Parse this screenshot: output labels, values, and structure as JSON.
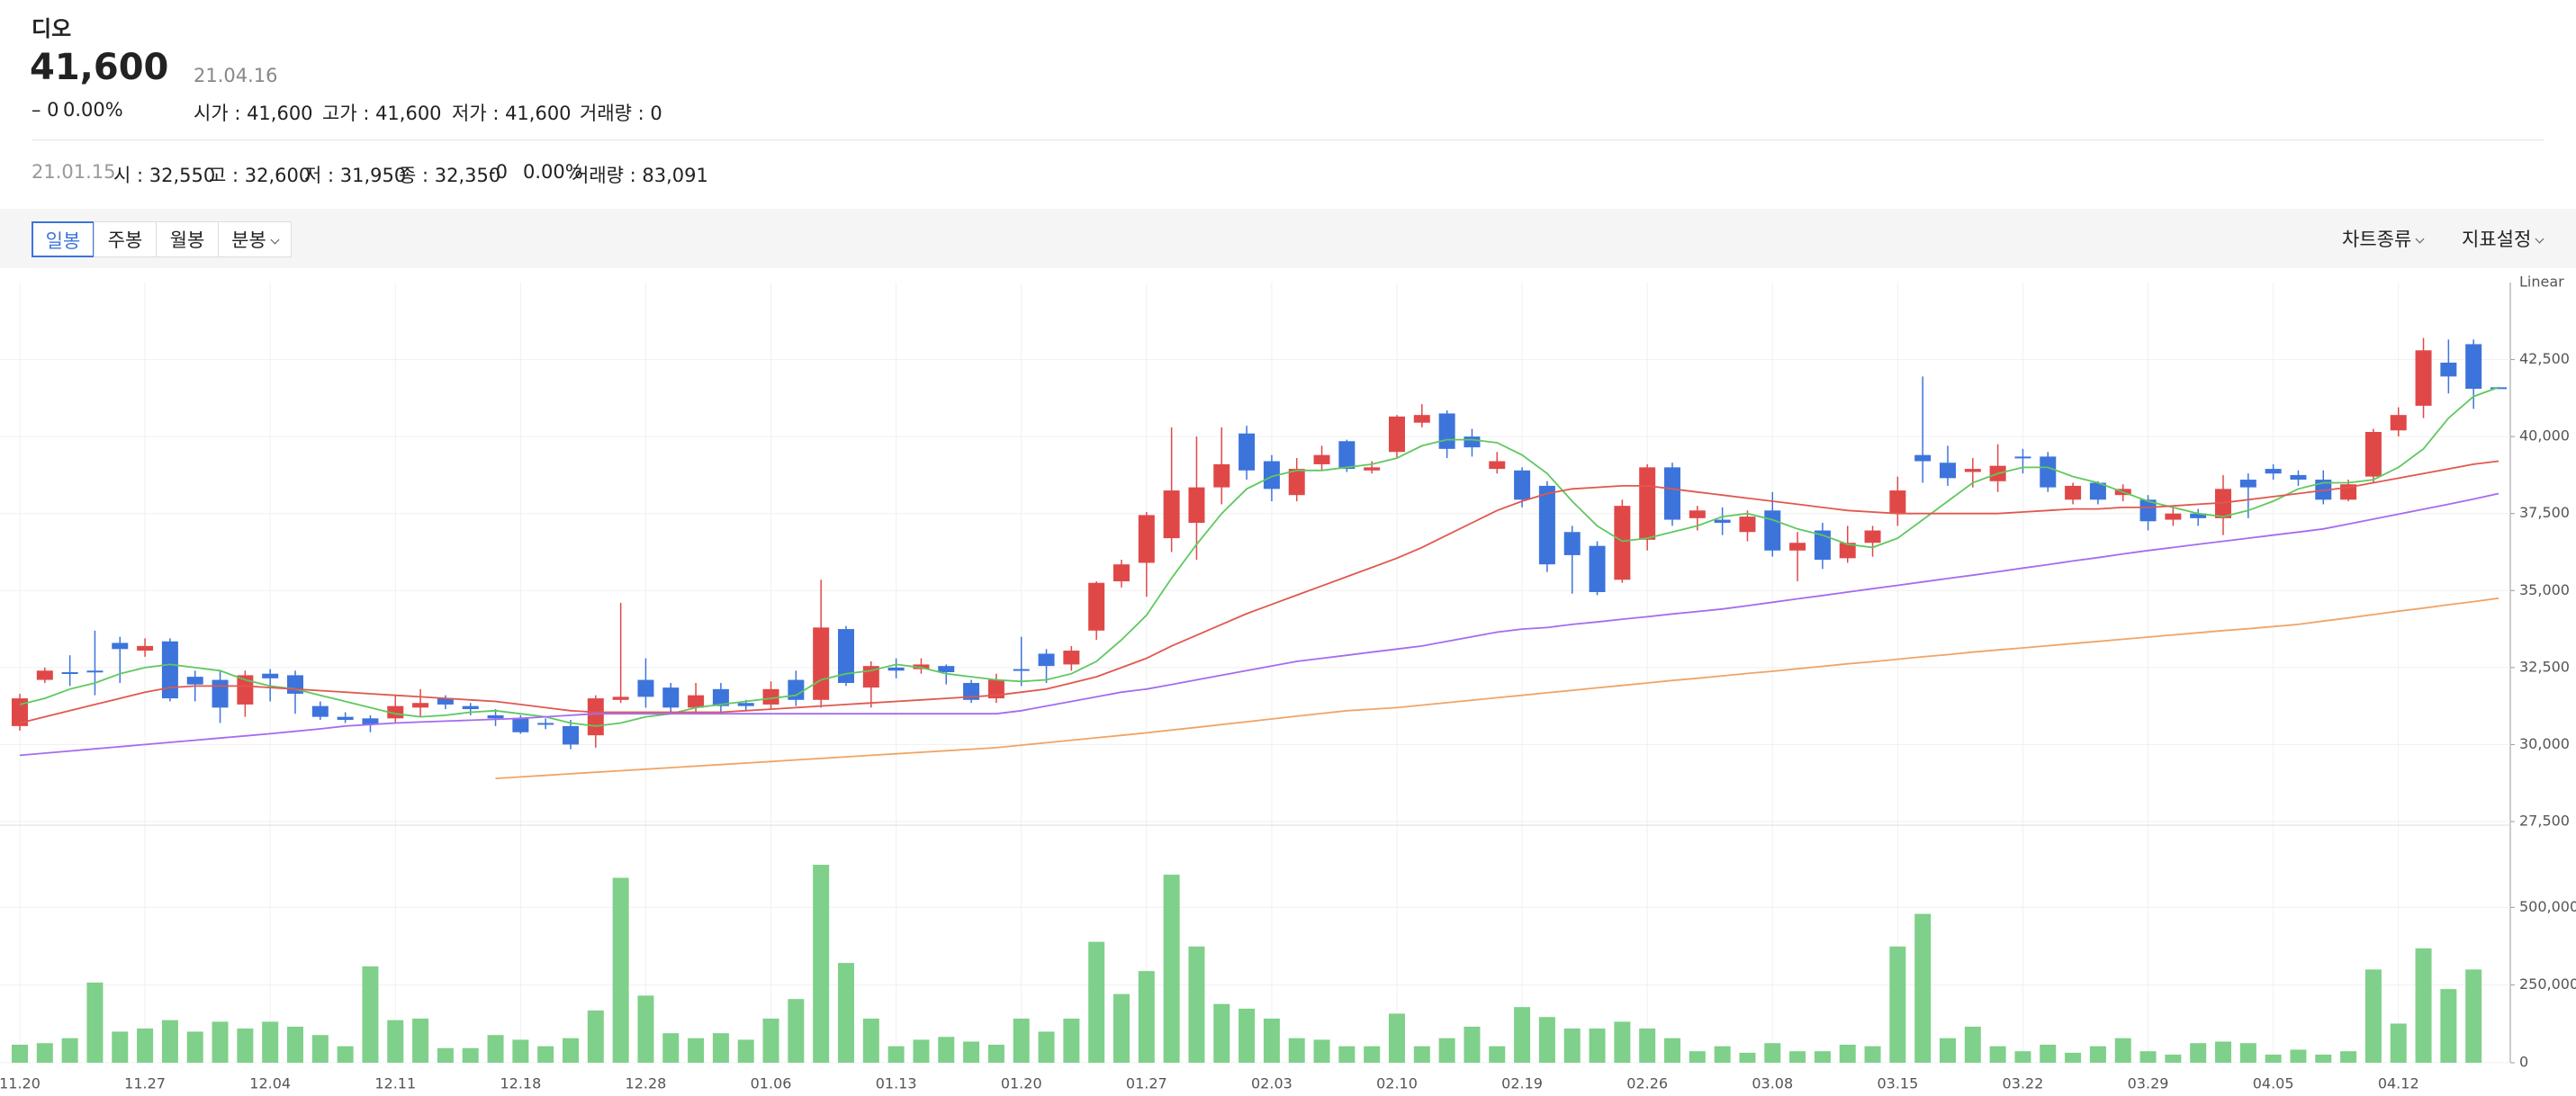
{
  "header": {
    "title": "디오",
    "price": "41,600",
    "date": "21.04.16",
    "change": "– 0",
    "change_pct": "0.00%",
    "stats": [
      "시가 : 41,600",
      "고가 : 41,600",
      "저가 : 41,600",
      "거래량 : 0"
    ]
  },
  "info": {
    "date": "21.01.15",
    "items": [
      "시 : 32,550",
      "고 : 32,600",
      "저 : 31,950",
      "종 : 32,350",
      "-0",
      "0.00%",
      "거래량 : 83,091"
    ]
  },
  "toolbar": {
    "periods": [
      "일봉",
      "주봉",
      "월봉",
      "분봉"
    ],
    "right": [
      "차트종류",
      "지표설정"
    ]
  },
  "chart_data": [
    {
      "type": "candlestick",
      "y_scale_label": "Linear",
      "up_color": "#e04848",
      "down_color": "#3c74dc",
      "grid": true,
      "ylim": [
        27500,
        45000
      ],
      "yticks": [
        {
          "value": 27500,
          "label": "27,500"
        },
        {
          "value": 30000,
          "label": "30,000"
        },
        {
          "value": 32500,
          "label": "32,500"
        },
        {
          "value": 35000,
          "label": "35,000"
        },
        {
          "value": 37500,
          "label": "37,500"
        },
        {
          "value": 40000,
          "label": "40,000"
        },
        {
          "value": 42500,
          "label": "42,500"
        }
      ],
      "open": [
        30600,
        32100,
        32350,
        32400,
        33300,
        33050,
        33350,
        32200,
        32100,
        31300,
        32300,
        32250,
        31250,
        30900,
        30850,
        30850,
        31200,
        31500,
        31250,
        30950,
        30850,
        30700,
        30600,
        30300,
        31450,
        32100,
        31850,
        31200,
        31800,
        31350,
        31300,
        32100,
        31450,
        33750,
        31850,
        32500,
        32450,
        32550,
        32000,
        31500,
        32450,
        32950,
        32600,
        33700,
        35300,
        35900,
        36700,
        37200,
        38350,
        40100,
        39200,
        38100,
        39100,
        39850,
        38900,
        39500,
        40450,
        40750,
        40000,
        38950,
        38900,
        38400,
        36900,
        36450,
        35350,
        36650,
        39000,
        37350,
        37300,
        36900,
        37600,
        36300,
        36950,
        36050,
        36550,
        37500,
        39400,
        39150,
        38850,
        38550,
        39350,
        39350,
        37950,
        38500,
        38100,
        37950,
        37300,
        37500,
        37350,
        38600,
        38950,
        38750,
        38600,
        37950,
        38700,
        40200,
        41000,
        42400,
        43000,
        41600
      ],
      "high": [
        31650,
        32500,
        32900,
        33700,
        33500,
        33450,
        33450,
        32400,
        32400,
        32400,
        32450,
        32400,
        31400,
        31050,
        30950,
        31600,
        31800,
        31600,
        31350,
        31150,
        30950,
        30850,
        30800,
        31600,
        34600,
        32800,
        32000,
        32000,
        32000,
        31450,
        32050,
        32400,
        35350,
        33850,
        32700,
        32800,
        32800,
        32600,
        32100,
        32300,
        33500,
        33100,
        33200,
        35300,
        36000,
        37550,
        40300,
        40000,
        40300,
        40350,
        39400,
        39300,
        39700,
        39900,
        39200,
        40700,
        41050,
        40850,
        40250,
        39500,
        39000,
        38550,
        37100,
        36600,
        37950,
        39100,
        39150,
        37750,
        37700,
        37600,
        38200,
        36900,
        37200,
        37100,
        37100,
        38700,
        41950,
        39700,
        39300,
        39750,
        39600,
        39500,
        38500,
        38550,
        38450,
        38100,
        37700,
        37650,
        38750,
        38800,
        39100,
        38900,
        38900,
        38600,
        40250,
        40950,
        43200,
        43150,
        43150,
        41600
      ],
      "low": [
        30450,
        32000,
        31900,
        31600,
        32000,
        32850,
        31400,
        31400,
        30700,
        30900,
        31400,
        31000,
        30800,
        30700,
        30400,
        30700,
        30900,
        31150,
        30950,
        30600,
        30350,
        30500,
        29850,
        29900,
        31350,
        31200,
        31000,
        31000,
        31000,
        31100,
        31150,
        31250,
        31200,
        31900,
        31200,
        32150,
        32300,
        31950,
        31350,
        31350,
        31900,
        32000,
        32400,
        33400,
        35100,
        34800,
        36250,
        36000,
        37800,
        38600,
        37900,
        37900,
        38900,
        38850,
        38800,
        39300,
        40300,
        39300,
        39350,
        38800,
        37700,
        35600,
        34900,
        34850,
        35250,
        36300,
        37100,
        36950,
        36800,
        36600,
        36100,
        35300,
        35700,
        35900,
        36100,
        37100,
        38500,
        38400,
        38350,
        38200,
        38800,
        38200,
        37800,
        37800,
        37900,
        36950,
        37100,
        37100,
        36800,
        37350,
        38600,
        38400,
        37800,
        37900,
        38500,
        40000,
        40600,
        41400,
        40900,
        41600
      ],
      "close": [
        31500,
        32400,
        32300,
        32350,
        33100,
        33200,
        31500,
        31950,
        31200,
        32250,
        32150,
        31650,
        30900,
        30800,
        30650,
        31250,
        31350,
        31300,
        31150,
        30850,
        30400,
        30650,
        30000,
        31500,
        31550,
        31550,
        31200,
        31600,
        31250,
        31250,
        31800,
        31450,
        33800,
        32000,
        32550,
        32400,
        32600,
        32350,
        31450,
        32100,
        32400,
        32550,
        33050,
        35250,
        35850,
        37450,
        38250,
        38350,
        39100,
        38900,
        38300,
        38950,
        39400,
        38950,
        39000,
        40650,
        40700,
        39600,
        39650,
        39200,
        37950,
        35850,
        36150,
        34950,
        37750,
        39000,
        37300,
        37600,
        37200,
        37400,
        36300,
        36550,
        36000,
        36550,
        36950,
        38250,
        39200,
        38650,
        38950,
        39050,
        39300,
        38350,
        38400,
        37950,
        38300,
        37250,
        37500,
        37350,
        38300,
        38350,
        38800,
        38600,
        37950,
        38450,
        40150,
        40700,
        42800,
        41950,
        41550,
        41600
      ],
      "overlays": [
        {
          "color": "#5fc85f",
          "values": [
            31300,
            31500,
            31800,
            32000,
            32300,
            32500,
            32600,
            32500,
            32400,
            32100,
            31900,
            31800,
            31600,
            31400,
            31200,
            31000,
            30900,
            30950,
            31050,
            31100,
            31000,
            30900,
            30700,
            30600,
            30700,
            30900,
            31000,
            31200,
            31300,
            31400,
            31500,
            31600,
            32100,
            32300,
            32400,
            32600,
            32500,
            32300,
            32200,
            32100,
            32050,
            32100,
            32300,
            32700,
            33400,
            34200,
            35400,
            36500,
            37500,
            38300,
            38700,
            38900,
            38900,
            39000,
            39100,
            39300,
            39700,
            39900,
            39900,
            39800,
            39400,
            38800,
            37900,
            37100,
            36600,
            36700,
            36900,
            37100,
            37400,
            37500,
            37300,
            37000,
            36800,
            36500,
            36400,
            36700,
            37300,
            37900,
            38500,
            38800,
            39000,
            39000,
            38700,
            38500,
            38200,
            37900,
            37700,
            37500,
            37400,
            37600,
            37900,
            38300,
            38500,
            38500,
            38600,
            39000,
            39600,
            40600,
            41300,
            41600
          ]
        },
        {
          "color": "#e0584e",
          "values": [
            30700,
            30900,
            31100,
            31300,
            31500,
            31700,
            31850,
            31900,
            31900,
            31900,
            31850,
            31800,
            31750,
            31700,
            31650,
            31600,
            31550,
            31500,
            31450,
            31400,
            31300,
            31200,
            31100,
            31050,
            31050,
            31050,
            31050,
            31050,
            31050,
            31100,
            31150,
            31200,
            31250,
            31300,
            31350,
            31400,
            31450,
            31500,
            31550,
            31600,
            31700,
            31800,
            32000,
            32200,
            32500,
            32800,
            33200,
            33550,
            33900,
            34250,
            34550,
            34850,
            35150,
            35450,
            35750,
            36050,
            36400,
            36800,
            37200,
            37600,
            37900,
            38150,
            38300,
            38350,
            38400,
            38400,
            38300,
            38200,
            38100,
            38000,
            37900,
            37800,
            37700,
            37600,
            37550,
            37500,
            37500,
            37500,
            37500,
            37500,
            37550,
            37600,
            37650,
            37650,
            37700,
            37700,
            37750,
            37800,
            37850,
            37950,
            38050,
            38150,
            38250,
            38350,
            38500,
            38650,
            38800,
            38950,
            39100,
            39200
          ]
        },
        {
          "color": "#a46cf0",
          "values": [
            29650,
            29720,
            29790,
            29860,
            29930,
            30000,
            30070,
            30140,
            30210,
            30280,
            30350,
            30430,
            30510,
            30600,
            30650,
            30700,
            30730,
            30760,
            30790,
            30820,
            30850,
            30900,
            30950,
            31000,
            31000,
            31000,
            31000,
            31000,
            31000,
            31000,
            31000,
            31000,
            31000,
            31000,
            31000,
            31000,
            31000,
            31000,
            31000,
            31000,
            31100,
            31250,
            31400,
            31550,
            31700,
            31800,
            31950,
            32100,
            32250,
            32400,
            32550,
            32700,
            32800,
            32900,
            33000,
            33100,
            33200,
            33350,
            33500,
            33650,
            33750,
            33800,
            33900,
            33980,
            34070,
            34150,
            34240,
            34320,
            34400,
            34510,
            34620,
            34730,
            34840,
            34950,
            35060,
            35170,
            35280,
            35390,
            35500,
            35610,
            35730,
            35840,
            35960,
            36070,
            36190,
            36300,
            36400,
            36500,
            36600,
            36700,
            36800,
            36900,
            37000,
            37160,
            37320,
            37480,
            37640,
            37800,
            37970,
            38150
          ]
        },
        {
          "color": "#f0a466",
          "values": [
            null,
            null,
            null,
            null,
            null,
            null,
            null,
            null,
            null,
            null,
            null,
            null,
            null,
            null,
            null,
            null,
            null,
            null,
            null,
            28900,
            28950,
            29000,
            29050,
            29100,
            29150,
            29200,
            29250,
            29300,
            29350,
            29400,
            29450,
            29500,
            29550,
            29600,
            29650,
            29700,
            29750,
            29800,
            29850,
            29900,
            29980,
            30060,
            30140,
            30220,
            30300,
            30380,
            30470,
            30560,
            30650,
            30740,
            30830,
            30920,
            31010,
            31100,
            31150,
            31200,
            31280,
            31360,
            31440,
            31520,
            31600,
            31680,
            31760,
            31840,
            31920,
            32000,
            32080,
            32150,
            32230,
            32310,
            32380,
            32460,
            32540,
            32620,
            32690,
            32770,
            32850,
            32920,
            33000,
            33070,
            33140,
            33210,
            33280,
            33350,
            33420,
            33490,
            33560,
            33630,
            33700,
            33760,
            33830,
            33900,
            34010,
            34110,
            34220,
            34330,
            34430,
            34540,
            34640,
            34750
          ]
        }
      ]
    },
    {
      "type": "bar",
      "color": "#7fd08a",
      "grid": true,
      "ylim": [
        0,
        750000
      ],
      "yticks": [
        0,
        {
          "value": 250000,
          "label": "250,000"
        },
        {
          "value": 500000,
          "label": "500,000"
        }
      ],
      "categories": [
        "11.20",
        null,
        null,
        null,
        null,
        "11.27",
        null,
        null,
        null,
        null,
        "12.04",
        null,
        null,
        null,
        null,
        "12.11",
        null,
        null,
        null,
        null,
        "12.18",
        null,
        null,
        null,
        null,
        "12.28",
        null,
        null,
        null,
        null,
        "01.06",
        null,
        null,
        null,
        null,
        "01.13",
        null,
        null,
        null,
        null,
        "01.20",
        null,
        null,
        null,
        null,
        "01.27",
        null,
        null,
        null,
        null,
        "02.03",
        null,
        null,
        null,
        null,
        "02.10",
        null,
        null,
        null,
        null,
        "02.19",
        null,
        null,
        null,
        null,
        "02.26",
        null,
        null,
        null,
        null,
        "03.08",
        null,
        null,
        null,
        null,
        "03.15",
        null,
        null,
        null,
        null,
        "03.22",
        null,
        null,
        null,
        null,
        "03.29",
        null,
        null,
        null,
        null,
        "04.05",
        null,
        null,
        null,
        null,
        "04.12",
        null,
        null,
        null,
        null
      ],
      "values": [
        58000,
        63000,
        79000,
        258000,
        100000,
        110000,
        137000,
        100000,
        132000,
        110000,
        132000,
        116000,
        89000,
        53000,
        310000,
        137000,
        142000,
        47000,
        47000,
        89000,
        74000,
        53000,
        79000,
        168000,
        595000,
        216000,
        95000,
        79000,
        95000,
        74000,
        142000,
        205000,
        637000,
        321000,
        142000,
        53000,
        74000,
        83091,
        68000,
        58000,
        142000,
        100000,
        142000,
        389000,
        221000,
        295000,
        605000,
        374000,
        189000,
        174000,
        142000,
        79000,
        74000,
        53000,
        53000,
        158000,
        53000,
        79000,
        116000,
        53000,
        179000,
        147000,
        110000,
        110000,
        132000,
        110000,
        79000,
        37000,
        53000,
        32000,
        63000,
        37000,
        37000,
        58000,
        53000,
        374000,
        479000,
        79000,
        116000,
        53000,
        37000,
        58000,
        32000,
        53000,
        79000,
        37000,
        26000,
        63000,
        68000,
        63000,
        26000,
        42000,
        26000,
        37000,
        300000,
        126000,
        368000,
        237000,
        300000,
        0
      ]
    }
  ]
}
